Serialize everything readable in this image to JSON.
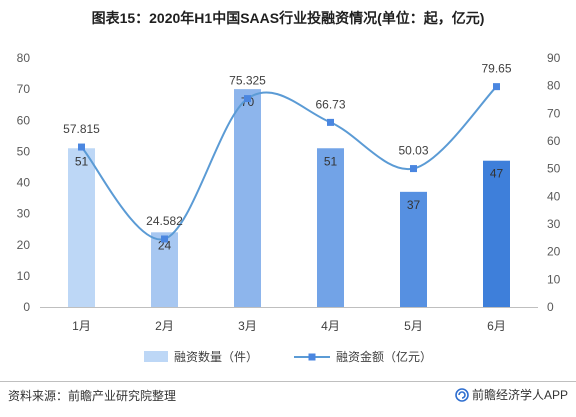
{
  "chart_data": {
    "type": "bar",
    "title": "图表15：2020年H1中国SAAS行业投融资情况(单位：起，亿元)",
    "xlabel": "",
    "ylabel": "",
    "categories": [
      "1月",
      "2月",
      "3月",
      "4月",
      "5月",
      "6月"
    ],
    "series": [
      {
        "name": "融资数量（件）",
        "type": "bar",
        "axis": "left",
        "values": [
          51,
          24,
          70,
          51,
          37,
          47
        ],
        "colors": [
          "#bdd7f6",
          "#a7c7f1",
          "#8db5ec",
          "#72a3e7",
          "#5690e1",
          "#3e7fda"
        ]
      },
      {
        "name": "融资金额（亿元）",
        "type": "line",
        "axis": "right",
        "smooth": true,
        "marker": "square",
        "values": [
          57.815,
          24.582,
          75.325,
          66.73,
          50.03,
          79.65
        ],
        "color": "#5b9bd5"
      }
    ],
    "ylim_left": [
      0,
      80
    ],
    "yticks_left": [
      0,
      10,
      20,
      30,
      40,
      50,
      60,
      70,
      80
    ],
    "ylim_right": [
      0,
      90
    ],
    "yticks_right": [
      0,
      10,
      20,
      30,
      40,
      50,
      60,
      70,
      80,
      90
    ],
    "grid": false,
    "legend": "bottom"
  },
  "footer": {
    "source": "资料来源：前瞻产业研究院整理",
    "brand": "前瞻经济学人APP",
    "brand_icon": "qianzhan-logo-icon"
  }
}
